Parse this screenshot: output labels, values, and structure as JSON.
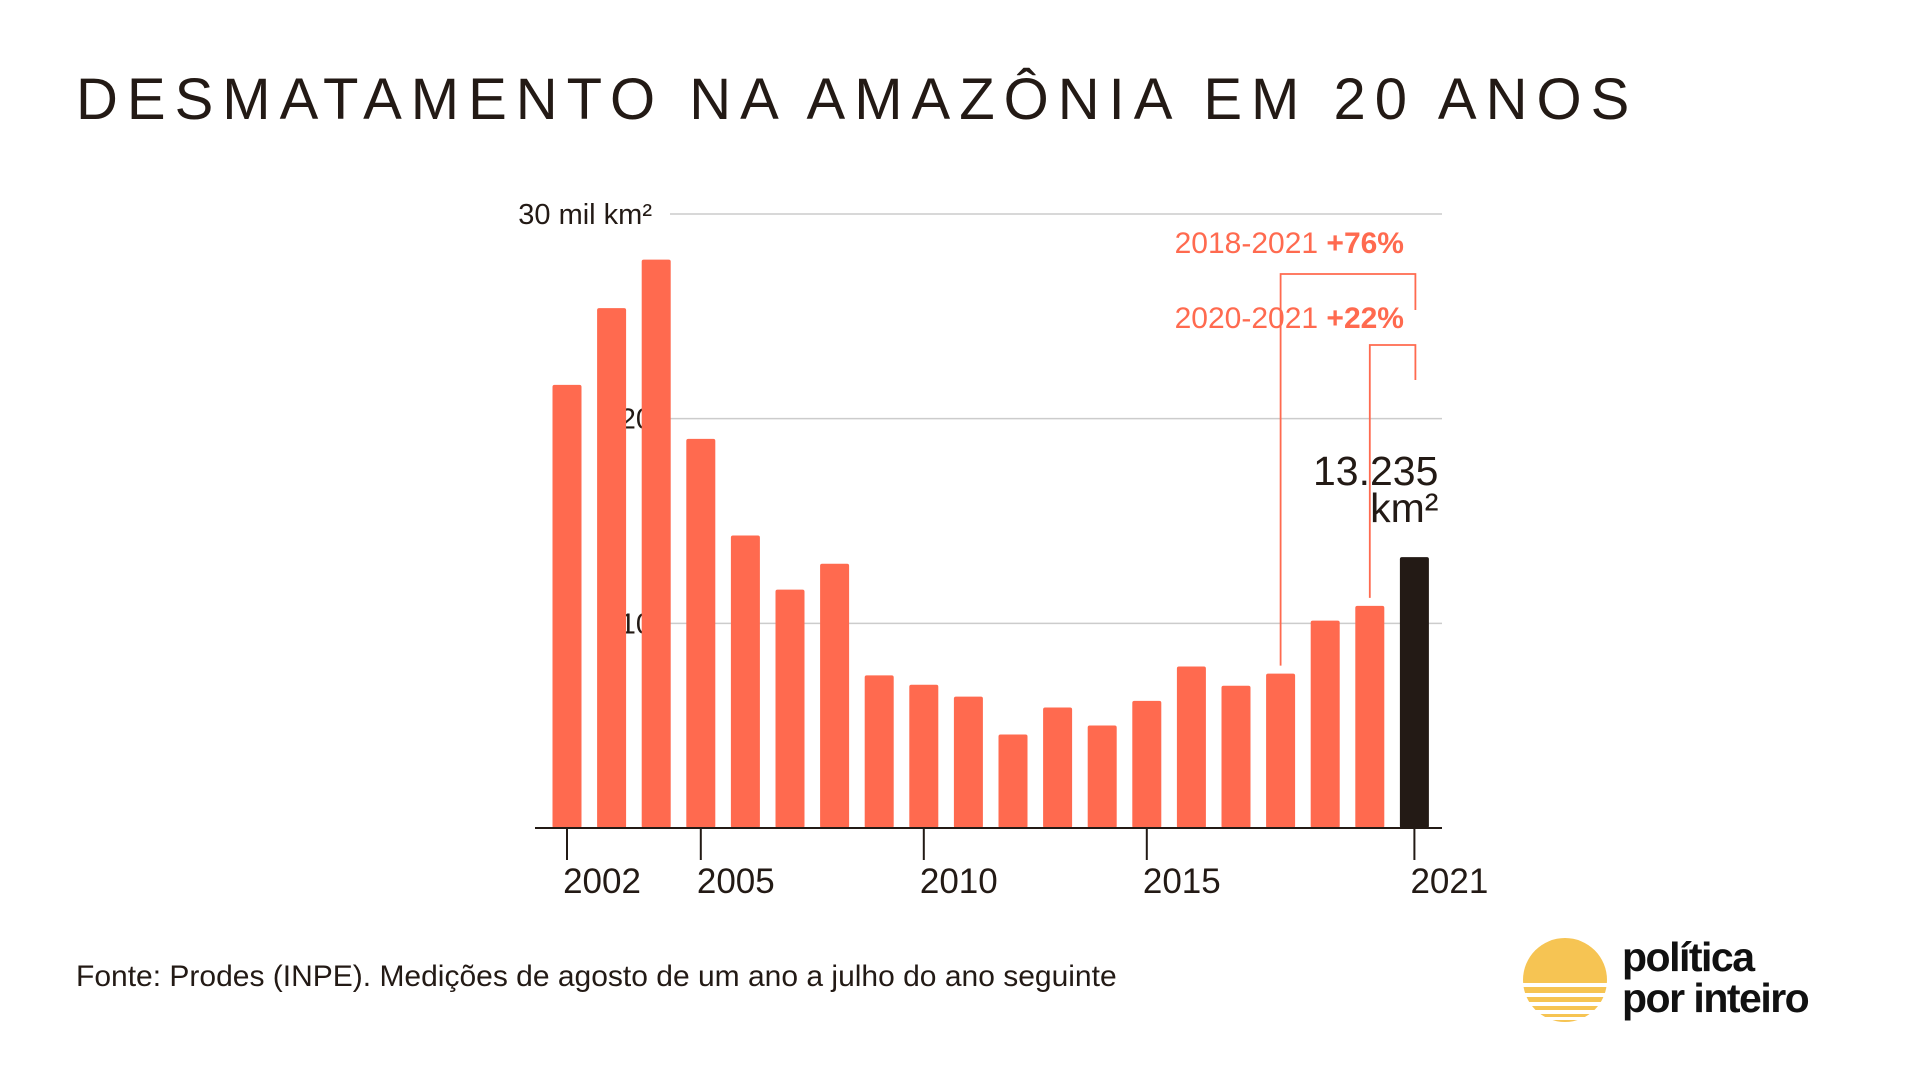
{
  "title": "DESMATAMENTO NA AMAZÔNIA EM 20 ANOS",
  "source": "Fonte: Prodes (INPE). Medições de agosto de um ano a julho do ano seguinte",
  "logo": {
    "line1": "política",
    "line2": "por inteiro"
  },
  "colors": {
    "bar": "#ff6a4f",
    "highlight": "#231a15",
    "annotation": "#ff6a4f",
    "grid": "#cccccc",
    "text": "#231a15",
    "logo_sun": "#f6c453"
  },
  "chart_data": {
    "type": "bar",
    "title": "DESMATAMENTO NA AMAZÔNIA EM 20 ANOS",
    "ylabel": "mil km²",
    "ylim": [
      0,
      30
    ],
    "yticks": [
      {
        "value": 30,
        "label": "30 mil km²"
      },
      {
        "value": 20,
        "label": "20"
      },
      {
        "value": 10,
        "label": "10"
      }
    ],
    "xticks": [
      {
        "year": 2002,
        "label": "2002"
      },
      {
        "year": 2005,
        "label": "2005"
      },
      {
        "year": 2010,
        "label": "2010"
      },
      {
        "year": 2015,
        "label": "2015"
      },
      {
        "year": 2021,
        "label": "2021"
      }
    ],
    "categories": [
      2002,
      2003,
      2004,
      2005,
      2006,
      2007,
      2008,
      2009,
      2010,
      2011,
      2012,
      2013,
      2014,
      2015,
      2016,
      2017,
      2018,
      2019,
      2020,
      2021
    ],
    "values": [
      21.65,
      25.4,
      27.77,
      19.01,
      14.29,
      11.65,
      12.91,
      7.46,
      7.0,
      6.42,
      4.57,
      5.89,
      5.01,
      6.21,
      7.89,
      6.95,
      7.54,
      10.13,
      10.85,
      13.235
    ],
    "highlight_index": 19,
    "data_labels": [
      {
        "index": 19,
        "lines": [
          "13.235",
          "km²"
        ]
      }
    ],
    "annotations": [
      {
        "period": "2018-2021",
        "change": "+76%",
        "from_index": 16,
        "to_index": 19
      },
      {
        "period": "2020-2021",
        "change": "+22%",
        "from_index": 18,
        "to_index": 19
      }
    ],
    "grid": true
  }
}
